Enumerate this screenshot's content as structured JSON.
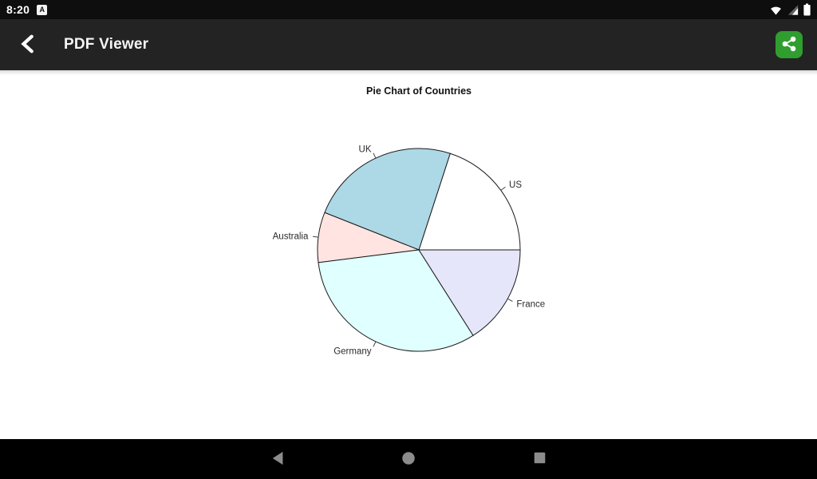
{
  "status_bar": {
    "time": "8:20",
    "notification_letter": "A",
    "icons": [
      "wifi-icon",
      "cellular-signal-icon",
      "battery-icon"
    ]
  },
  "app_bar": {
    "title": "PDF Viewer",
    "back_icon": "chevron-left-icon",
    "share_icon": "share-icon",
    "share_button_color": "#2f9e2f"
  },
  "nav_bar": {
    "back_icon": "nav-back-triangle-icon",
    "home_icon": "nav-home-circle-icon",
    "recents_icon": "nav-recents-square-icon",
    "icon_color": "#8c8c8c"
  },
  "chart_data": {
    "type": "pie",
    "title": "Pie Chart of Countries",
    "categories": [
      "US",
      "UK",
      "Australia",
      "Germany",
      "France"
    ],
    "values": [
      20,
      24,
      8,
      32,
      16
    ],
    "colors": [
      "#FFFFFF",
      "#ADD8E6",
      "#FFE4E1",
      "#E0FFFF",
      "#E6E6FA"
    ],
    "start_angle_deg": 0,
    "direction": "counterclockwise",
    "stroke_color": "#1a1a1a",
    "label_color": "#2b2b2b",
    "legend_position": "none",
    "grid": false
  }
}
